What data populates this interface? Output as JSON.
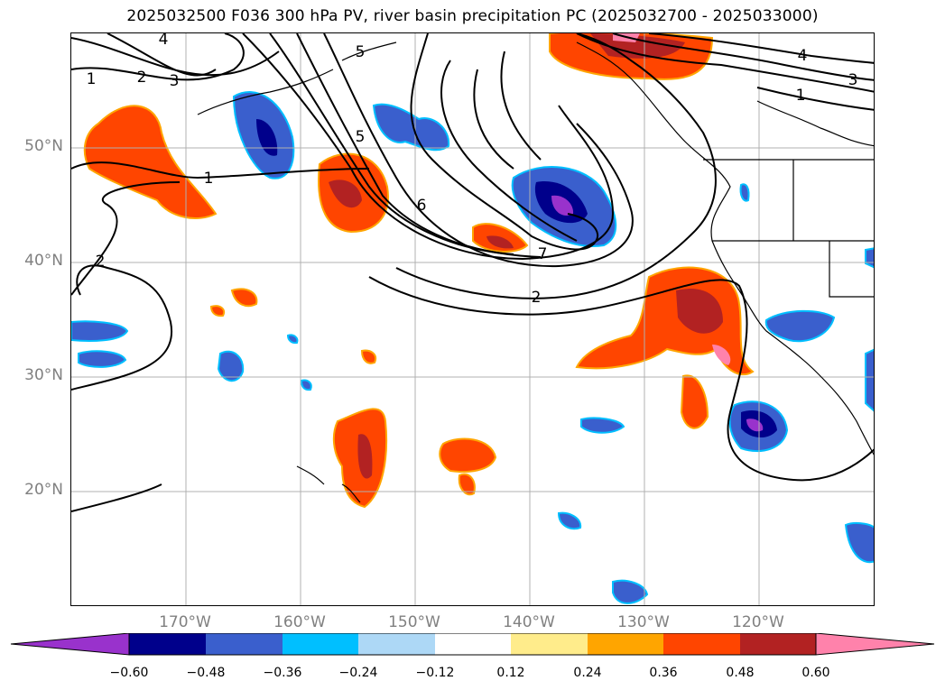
{
  "title": "2025032500 F036 300 hPa PV, river basin precipitation PC (2025032700 - 2025033000)",
  "lat_labels": [
    "50°N",
    "40°N",
    "30°N",
    "20°N"
  ],
  "lon_labels": [
    "170°W",
    "160°W",
    "150°W",
    "140°W",
    "130°W",
    "120°W"
  ],
  "contour_labels": [
    "4",
    "1",
    "2",
    "3",
    "5",
    "1",
    "6",
    "7",
    "2",
    "2",
    "4",
    "3",
    "1",
    "5"
  ],
  "colorbar": {
    "ticks": [
      "−0.60",
      "−0.48",
      "−0.36",
      "−0.24",
      "−0.12",
      "0.12",
      "0.24",
      "0.36",
      "0.48",
      "0.60"
    ],
    "colors": [
      "#9932CC",
      "#00008B",
      "#3A5FCD",
      "#00BFFF",
      "#ADD8F6",
      "#FFFFFF",
      "#FFEC8B",
      "#FFA500",
      "#FF4500",
      "#B22222",
      "#FF82AB",
      "#FF82AB"
    ]
  }
}
